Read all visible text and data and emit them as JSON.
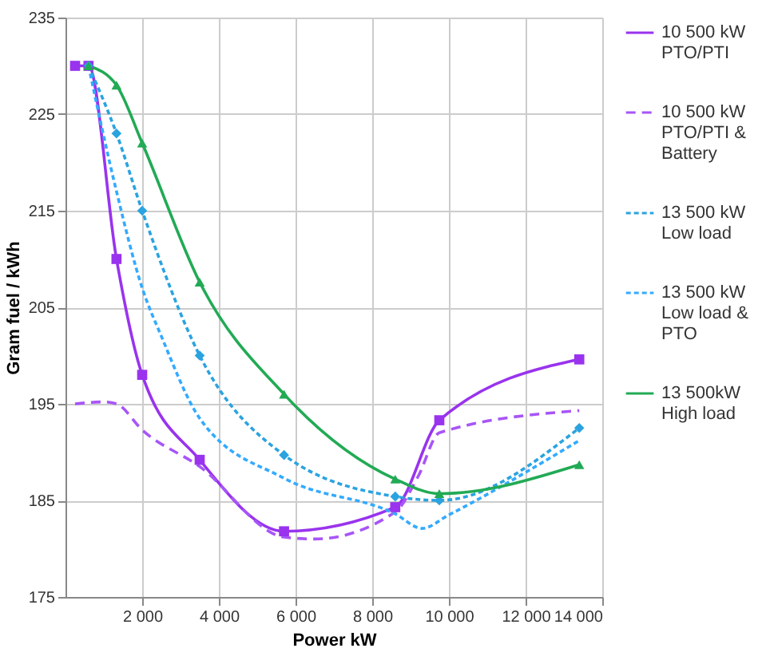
{
  "chart_data": {
    "type": "line",
    "xlabel": "Power kW",
    "ylabel": "Gram fuel / kWh",
    "xlim": [
      0,
      14000
    ],
    "xticks": [
      {
        "value": 2000,
        "label": "2 000"
      },
      {
        "value": 4000,
        "label": "4 000"
      },
      {
        "value": 6000,
        "label": "6 000"
      },
      {
        "value": 8000,
        "label": "8 000"
      },
      {
        "value": 10000,
        "label": "10 000"
      },
      {
        "value": 12000,
        "label": "12 000"
      },
      {
        "value": 14000,
        "label": "14 000"
      }
    ],
    "ylim": [
      175,
      235
    ],
    "yticks": [
      175,
      185,
      195,
      205,
      215,
      225,
      235
    ],
    "grid": true,
    "legend": "right",
    "series": [
      {
        "name": "10 500 kW PTO/PTI",
        "color": "#9933ee",
        "marker": "square",
        "line_style": "solid",
        "x": [
          250,
          600,
          1330,
          2000,
          3500,
          5700,
          8600,
          9750,
          13400
        ],
        "values": [
          230,
          230,
          210,
          198,
          189.2,
          181.8,
          184.3,
          193.3,
          199.6
        ]
      },
      {
        "name": "10 500 kW PTO/PTI & Battery",
        "color": "#a855f7",
        "marker": "none",
        "line_style": "dashed",
        "x": [
          250,
          1000,
          1330,
          2000,
          3500,
          5700,
          6500,
          8600,
          9200,
          9750,
          13400
        ],
        "values": [
          195,
          195.2,
          195,
          192.3,
          188.5,
          181.2,
          181,
          183.8,
          187.5,
          192,
          194.3
        ]
      },
      {
        "name": "13 500 kW Low load",
        "color": "#2aa3e0",
        "marker": "diamond",
        "line_style": "dotted",
        "x": [
          600,
          1330,
          2000,
          3500,
          5700,
          8600,
          9750,
          13400
        ],
        "values": [
          230,
          223,
          215,
          200,
          189.7,
          185.4,
          185,
          192.5
        ]
      },
      {
        "name": "13 500 kW Low load & PTO",
        "color": "#33aaff",
        "marker": "none",
        "line_style": "dotted",
        "x": [
          600,
          1330,
          2000,
          2500,
          3500,
          5700,
          8600,
          9300,
          10000,
          13400
        ],
        "values": [
          230,
          217,
          207,
          202,
          193.5,
          187.3,
          183.6,
          182.1,
          183.5,
          191.2
        ]
      },
      {
        "name": "13 500kW High load",
        "color": "#22aa55",
        "marker": "triangle",
        "line_style": "solid",
        "x": [
          600,
          1330,
          2000,
          3500,
          5700,
          8600,
          9750,
          13400
        ],
        "values": [
          230,
          228,
          222,
          207.6,
          196,
          187.2,
          185.7,
          188.7
        ]
      }
    ]
  }
}
